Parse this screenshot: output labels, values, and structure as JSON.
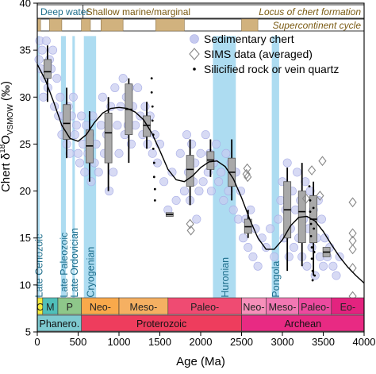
{
  "chart_data": {
    "type": "scatter",
    "xlabel": "Age (Ma)",
    "ylabel_main": "Chert δ",
    "ylabel_sup": "18",
    "ylabel_rest": "O",
    "ylabel_sub": "VSMOW",
    "ylabel_unit": " (‰)",
    "xlim": [
      0,
      4000
    ],
    "ylim": [
      5,
      40
    ],
    "xticks": [
      0,
      500,
      1000,
      1500,
      2000,
      2500,
      3000,
      3500,
      4000
    ],
    "yticks": [
      5,
      10,
      15,
      20,
      25,
      30,
      35,
      40
    ],
    "legend_position": "top-right",
    "legend": [
      {
        "name": "Sedimentary chert",
        "marker": "circle"
      },
      {
        "name": "SIMS data (averaged)",
        "marker": "diamond"
      },
      {
        "name": "Silicified rock or vein quartz",
        "marker": "dot"
      }
    ],
    "top_bar": {
      "deep_water_label": "Deep water",
      "shallow_label": "Shallow marine/marginal",
      "locus_label": "Locus of chert formation",
      "supercontinent_label": "Supercontinent cycle",
      "deep_water_range": [
        0,
        560
      ],
      "supercontinent_blocks": [
        [
          0,
          40
        ],
        [
          150,
          300
        ],
        [
          540,
          650
        ],
        [
          780,
          1050
        ],
        [
          1450,
          1800
        ],
        [
          2500,
          2700
        ]
      ]
    },
    "glaciations": [
      {
        "name": "Late Cenozoic",
        "x0": 0,
        "x1": 20
      },
      {
        "name": "Late Paleozoic",
        "x0": 290,
        "x1": 350
      },
      {
        "name": "Late Ordovician",
        "x0": 430,
        "x1": 460
      },
      {
        "name": "Cryogenian",
        "x0": 570,
        "x1": 720
      },
      {
        "name": "Huronian",
        "x0": 2150,
        "x1": 2430
      },
      {
        "name": "Pongola",
        "x0": 2870,
        "x1": 2960
      }
    ],
    "eras": [
      {
        "label": "C",
        "x0": 0,
        "x1": 66,
        "color": "#f5ec3c"
      },
      {
        "label": "M",
        "x0": 66,
        "x1": 252,
        "color": "#4fbfb9"
      },
      {
        "label": "P",
        "x0": 252,
        "x1": 541,
        "color": "#8ec78a"
      },
      {
        "label": "Neo-",
        "x0": 541,
        "x1": 1000,
        "color": "#f9a94b"
      },
      {
        "label": "Meso-",
        "x0": 1000,
        "x1": 1600,
        "color": "#f5b062"
      },
      {
        "label": "Paleo-",
        "x0": 1600,
        "x1": 2500,
        "color": "#ef4b72"
      },
      {
        "label": "Neo-",
        "x0": 2500,
        "x1": 2800,
        "color": "#f690ba"
      },
      {
        "label": "Meso-",
        "x0": 2800,
        "x1": 3200,
        "color": "#f178b3"
      },
      {
        "label": "Paleo-",
        "x0": 3200,
        "x1": 3600,
        "color": "#ec4a9f"
      },
      {
        "label": "Eo-",
        "x0": 3600,
        "x1": 4000,
        "color": "#e3237f"
      }
    ],
    "eons": [
      {
        "label": "Phanero.",
        "x0": 0,
        "x1": 541,
        "color": "#7ecad0"
      },
      {
        "label": "Proterozoic",
        "x0": 541,
        "x1": 2500,
        "color": "#ee3d5d"
      },
      {
        "label": "Archean",
        "x0": 2500,
        "x1": 4000,
        "color": "#e82a83"
      }
    ],
    "boxplots": [
      {
        "x": 125,
        "q1": 32,
        "median": 32.7,
        "q3": 34,
        "lo": 29.5,
        "hi": 35.5
      },
      {
        "x": 360,
        "q1": 25.5,
        "median": 27.2,
        "q3": 29.2,
        "lo": 23.5,
        "hi": 31
      },
      {
        "x": 640,
        "q1": 23,
        "median": 24.8,
        "q3": 26.5,
        "lo": 21,
        "hi": 28.5
      },
      {
        "x": 870,
        "q1": 23,
        "median": 26.2,
        "q3": 28.3,
        "lo": 20,
        "hi": 30
      },
      {
        "x": 1120,
        "q1": 26,
        "median": 28.7,
        "q3": 31.4,
        "lo": 23,
        "hi": 32
      },
      {
        "x": 1340,
        "q1": 25.8,
        "median": 27,
        "q3": 28,
        "lo": 24.5,
        "hi": 29.5
      },
      {
        "x": 1620,
        "q1": 17.3,
        "median": 17.5,
        "q3": 17.7,
        "lo": 17.3,
        "hi": 17.7
      },
      {
        "x": 1870,
        "q1": 20.5,
        "median": 22.3,
        "q3": 23.8,
        "lo": 18.5,
        "hi": 25.5
      },
      {
        "x": 2120,
        "q1": 22.3,
        "median": 23.3,
        "q3": 24.2,
        "lo": 21.5,
        "hi": 25.5
      },
      {
        "x": 2380,
        "q1": 20.5,
        "median": 22,
        "q3": 23.5,
        "lo": 19,
        "hi": 25.5
      },
      {
        "x": 2580,
        "q1": 15.5,
        "median": 16.2,
        "q3": 17,
        "lo": 15,
        "hi": 18
      },
      {
        "x": 3060,
        "q1": 15,
        "median": 18,
        "q3": 21,
        "lo": 11.5,
        "hi": 22.5
      },
      {
        "x": 3240,
        "q1": 14.5,
        "median": 17.8,
        "q3": 20,
        "lo": 12,
        "hi": 23
      },
      {
        "x": 3380,
        "q1": 14.5,
        "median": 17,
        "q3": 19.5,
        "lo": 11,
        "hi": 21
      },
      {
        "x": 3540,
        "q1": 13,
        "median": 13.5,
        "q3": 14,
        "lo": 13,
        "hi": 14
      }
    ],
    "sims_diamonds": [
      {
        "x": 1870,
        "y": 16.5
      },
      {
        "x": 1880,
        "y": 15.8
      },
      {
        "x": 2560,
        "y": 21.8
      },
      {
        "x": 2570,
        "y": 22.4
      },
      {
        "x": 2575,
        "y": 21.5
      },
      {
        "x": 3290,
        "y": 19.2
      },
      {
        "x": 3360,
        "y": 22.2
      },
      {
        "x": 3460,
        "y": 19.5
      },
      {
        "x": 3490,
        "y": 23.2
      },
      {
        "x": 3860,
        "y": 18.8
      },
      {
        "x": 3860,
        "y": 15.5
      },
      {
        "x": 3860,
        "y": 14.7
      },
      {
        "x": 3860,
        "y": 13.8
      },
      {
        "x": 3860,
        "y": 11.8
      },
      {
        "x": 3860,
        "y": 8.8
      }
    ],
    "trend_curve": [
      [
        0,
        33.5
      ],
      [
        100,
        31.8
      ],
      [
        200,
        29.5
      ],
      [
        300,
        27
      ],
      [
        400,
        25.6
      ],
      [
        500,
        25.3
      ],
      [
        600,
        26
      ],
      [
        700,
        27.3
      ],
      [
        800,
        28.3
      ],
      [
        900,
        28.8
      ],
      [
        1000,
        28.9
      ],
      [
        1100,
        28.8
      ],
      [
        1200,
        28.4
      ],
      [
        1300,
        27.6
      ],
      [
        1400,
        26.2
      ],
      [
        1500,
        24.3
      ],
      [
        1600,
        22.3
      ],
      [
        1700,
        21.2
      ],
      [
        1800,
        21
      ],
      [
        1900,
        21.6
      ],
      [
        2000,
        22.5
      ],
      [
        2100,
        23.1
      ],
      [
        2200,
        23.2
      ],
      [
        2300,
        22.6
      ],
      [
        2400,
        21.3
      ],
      [
        2500,
        19.3
      ],
      [
        2600,
        17
      ],
      [
        2700,
        15
      ],
      [
        2800,
        13.8
      ],
      [
        2900,
        13.8
      ],
      [
        3000,
        14.8
      ],
      [
        3100,
        16.3
      ],
      [
        3200,
        17.2
      ],
      [
        3300,
        17.3
      ],
      [
        3400,
        16.8
      ],
      [
        3500,
        15.7
      ],
      [
        3600,
        14.3
      ],
      [
        3700,
        13
      ],
      [
        3800,
        11.9
      ],
      [
        3900,
        11
      ],
      [
        4000,
        10.2
      ]
    ],
    "chert_scatter": [
      [
        20,
        34
      ],
      [
        30,
        36
      ],
      [
        45,
        33
      ],
      [
        60,
        35
      ],
      [
        75,
        30
      ],
      [
        90,
        32
      ],
      [
        110,
        36
      ],
      [
        130,
        31
      ],
      [
        150,
        34
      ],
      [
        170,
        33
      ],
      [
        190,
        35
      ],
      [
        210,
        29
      ],
      [
        240,
        32
      ],
      [
        260,
        28
      ],
      [
        280,
        30
      ],
      [
        300,
        26
      ],
      [
        320,
        28
      ],
      [
        340,
        27
      ],
      [
        360,
        25
      ],
      [
        380,
        29
      ],
      [
        400,
        24
      ],
      [
        420,
        28
      ],
      [
        440,
        30
      ],
      [
        460,
        26
      ],
      [
        480,
        27
      ],
      [
        500,
        24
      ],
      [
        520,
        23
      ],
      [
        540,
        28
      ],
      [
        560,
        25
      ],
      [
        580,
        22
      ],
      [
        600,
        27
      ],
      [
        620,
        24
      ],
      [
        640,
        26
      ],
      [
        660,
        21
      ],
      [
        680,
        28
      ],
      [
        700,
        23
      ],
      [
        720,
        25
      ],
      [
        750,
        22
      ],
      [
        780,
        27
      ],
      [
        800,
        30
      ],
      [
        820,
        24
      ],
      [
        850,
        26
      ],
      [
        880,
        20
      ],
      [
        900,
        29
      ],
      [
        930,
        22
      ],
      [
        950,
        31
      ],
      [
        980,
        27
      ],
      [
        1000,
        24
      ],
      [
        1020,
        29
      ],
      [
        1050,
        32
      ],
      [
        1070,
        26
      ],
      [
        1090,
        30
      ],
      [
        1110,
        27
      ],
      [
        1130,
        31
      ],
      [
        1150,
        25
      ],
      [
        1170,
        29
      ],
      [
        1200,
        27
      ],
      [
        1230,
        31
      ],
      [
        1260,
        28
      ],
      [
        1290,
        26
      ],
      [
        1320,
        29
      ],
      [
        1350,
        25
      ],
      [
        1380,
        28
      ],
      [
        1410,
        24
      ],
      [
        1440,
        26
      ],
      [
        1470,
        23
      ],
      [
        1500,
        25
      ],
      [
        1550,
        21
      ],
      [
        1600,
        18
      ],
      [
        1650,
        22
      ],
      [
        1700,
        19
      ],
      [
        1750,
        24
      ],
      [
        1800,
        20
      ],
      [
        1830,
        26
      ],
      [
        1850,
        22
      ],
      [
        1870,
        19
      ],
      [
        1890,
        25
      ],
      [
        1910,
        21
      ],
      [
        1930,
        23
      ],
      [
        1950,
        17
      ],
      [
        1980,
        20
      ],
      [
        2000,
        24
      ],
      [
        2030,
        21
      ],
      [
        2060,
        26
      ],
      [
        2090,
        22
      ],
      [
        2110,
        24
      ],
      [
        2130,
        20
      ],
      [
        2160,
        23
      ],
      [
        2190,
        25
      ],
      [
        2220,
        21
      ],
      [
        2250,
        22
      ],
      [
        2280,
        19
      ],
      [
        2310,
        24
      ],
      [
        2340,
        20
      ],
      [
        2370,
        23
      ],
      [
        2400,
        18
      ],
      [
        2430,
        22
      ],
      [
        2460,
        17
      ],
      [
        2490,
        20
      ],
      [
        2520,
        15
      ],
      [
        2550,
        17
      ],
      [
        2580,
        14
      ],
      [
        2610,
        18
      ],
      [
        2640,
        13
      ],
      [
        2670,
        16
      ],
      [
        2700,
        12
      ],
      [
        2750,
        15
      ],
      [
        2800,
        14
      ],
      [
        2850,
        16
      ],
      [
        2900,
        13
      ],
      [
        2950,
        17
      ],
      [
        2980,
        19
      ],
      [
        3000,
        21
      ],
      [
        3020,
        15
      ],
      [
        3040,
        18
      ],
      [
        3060,
        23
      ],
      [
        3080,
        13
      ],
      [
        3100,
        16
      ],
      [
        3120,
        20
      ],
      [
        3140,
        14
      ],
      [
        3160,
        18
      ],
      [
        3180,
        22
      ],
      [
        3200,
        15
      ],
      [
        3220,
        19
      ],
      [
        3240,
        13
      ],
      [
        3260,
        17
      ],
      [
        3280,
        21
      ],
      [
        3300,
        12
      ],
      [
        3320,
        16
      ],
      [
        3340,
        20
      ],
      [
        3360,
        14
      ],
      [
        3380,
        18
      ],
      [
        3400,
        11
      ],
      [
        3420,
        15
      ],
      [
        3440,
        19
      ],
      [
        3460,
        13
      ],
      [
        3480,
        17
      ],
      [
        3500,
        12
      ],
      [
        3520,
        15
      ],
      [
        3550,
        13
      ],
      [
        3580,
        14
      ],
      [
        3620,
        12
      ],
      [
        3660,
        11
      ],
      [
        3700,
        13
      ]
    ],
    "vein_dots": [
      [
        1400,
        32
      ],
      [
        1400,
        30.5
      ],
      [
        1410,
        29
      ],
      [
        1410,
        27.5
      ],
      [
        1420,
        26
      ],
      [
        1420,
        24.5
      ],
      [
        1430,
        23
      ],
      [
        1430,
        21.5
      ],
      [
        1440,
        20.2
      ],
      [
        1440,
        19
      ],
      [
        3330,
        20.5
      ],
      [
        3340,
        19
      ],
      [
        3340,
        17.8
      ],
      [
        3350,
        16.5
      ],
      [
        3350,
        15.2
      ],
      [
        3360,
        14
      ],
      [
        3360,
        12.8
      ],
      [
        3370,
        11.5
      ],
      [
        3370,
        10.5
      ],
      [
        3380,
        18.2
      ],
      [
        3385,
        16
      ],
      [
        3390,
        13.5
      ],
      [
        3395,
        11
      ]
    ]
  }
}
